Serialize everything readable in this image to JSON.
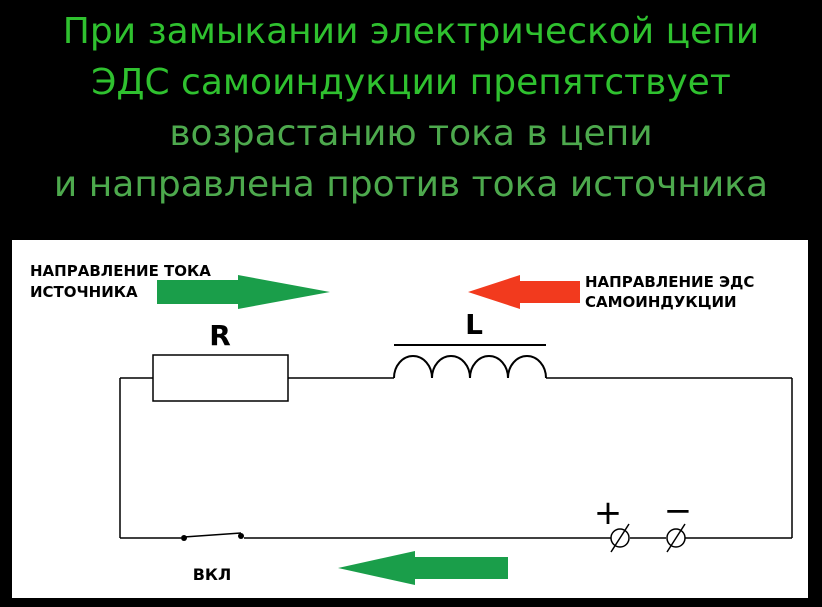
{
  "title_lines": [
    "При замыкании электрической цепи",
    "ЭДС самоиндукции препятствует",
    "возрастанию тока в цепи",
    "и направлена против тока источника"
  ],
  "labels": {
    "source_current_line1": "НАПРАВЛЕНИЕ ТОКА",
    "source_current_line2": "ИСТОЧНИКА",
    "emf_line1": "НАПРАВЛЕНИЕ ЭДС",
    "emf_line2": "САМОИНДУКЦИИ",
    "resistor": "R",
    "inductor": "L",
    "switch": "ВКЛ",
    "plus": "+",
    "minus": "−"
  },
  "colors": {
    "title": "#2fc12f",
    "current_arrow": "#1a9e4a",
    "emf_arrow": "#f23a1e",
    "background": "#000000",
    "panel": "#ffffff"
  }
}
